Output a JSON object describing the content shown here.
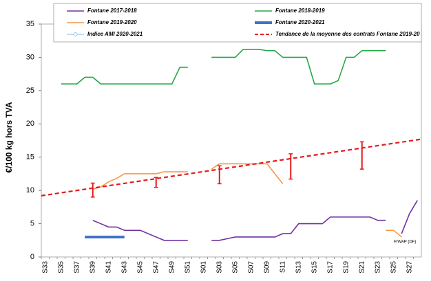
{
  "chart_data": {
    "type": "line",
    "y_label": "€/100 kg hors TVA",
    "annotation": "FIWAP (DF)",
    "ylim": [
      0,
      35
    ],
    "yticks": [
      0,
      5,
      10,
      15,
      20,
      25,
      30,
      35
    ],
    "categories": [
      "S33",
      null,
      "S35",
      null,
      "S37",
      null,
      "S39",
      null,
      "S41",
      null,
      "S43",
      null,
      "S45",
      null,
      "S47",
      null,
      "S49",
      null,
      "S51",
      null,
      "S01",
      null,
      "S03",
      null,
      "S05",
      null,
      "S07",
      null,
      "S09",
      null,
      "S11",
      null,
      "S13",
      null,
      "S15",
      null,
      "S17",
      null,
      "S19",
      null,
      "S21",
      null,
      "S23",
      null,
      "S25",
      null,
      "S27",
      null
    ],
    "series": [
      {
        "name": "Fontane 2017-2018",
        "color": "#7030a0",
        "line_width": 1.6,
        "values": [
          null,
          null,
          null,
          null,
          null,
          null,
          5.5,
          5,
          4.5,
          4.5,
          4,
          4,
          4,
          3.5,
          3,
          2.5,
          2.5,
          2.5,
          2.5,
          null,
          null,
          2.5,
          2.5,
          2.75,
          3,
          3,
          3,
          3,
          3,
          3,
          3.5,
          3.5,
          5,
          5,
          5,
          5,
          6,
          6,
          6,
          6,
          6,
          6,
          5.5,
          5.5,
          null,
          3.5,
          6.5,
          8.5
        ]
      },
      {
        "name": "Fontane 2018-2019",
        "color": "#22a846",
        "line_width": 1.6,
        "values": [
          null,
          null,
          26,
          26,
          26,
          27,
          27,
          26,
          26,
          26,
          26,
          26,
          26,
          26,
          26,
          26,
          26,
          28.5,
          28.5,
          null,
          null,
          30,
          30,
          30,
          30,
          31.2,
          31.2,
          31.2,
          31,
          31,
          30,
          30,
          30,
          30,
          26,
          26,
          26,
          26.5,
          30,
          30,
          31,
          31,
          31,
          31,
          null,
          null,
          null,
          null
        ]
      },
      {
        "name": "Fontane 2019-2020",
        "color": "#f79646",
        "line_width": 1.6,
        "values": [
          null,
          null,
          null,
          null,
          null,
          null,
          10.2,
          10.5,
          11.3,
          11.8,
          12.5,
          12.5,
          12.5,
          12.5,
          12.5,
          12.8,
          12.8,
          12.8,
          12.8,
          null,
          null,
          13.2,
          14,
          14,
          14,
          14,
          14,
          14,
          14,
          12.5,
          11,
          null,
          null,
          null,
          null,
          null,
          null,
          null,
          null,
          null,
          null,
          null,
          null,
          4,
          4,
          3,
          null,
          null
        ]
      },
      {
        "name": "Fontane 2020-2021",
        "color": "#4472c4",
        "line_width": 4,
        "values": [
          null,
          null,
          null,
          null,
          null,
          3,
          3,
          3,
          3,
          3,
          3,
          null,
          null,
          null,
          null,
          null,
          null,
          null,
          null,
          null,
          null,
          null,
          null,
          null,
          null,
          null,
          null,
          null,
          null,
          null,
          null,
          null,
          null,
          null,
          null,
          null,
          null,
          null,
          null,
          null,
          null,
          null,
          null,
          null,
          null,
          null,
          null,
          null
        ]
      },
      {
        "name": "Indice AMI 2020-2021",
        "color": "#9dc3e6",
        "line_width": 1.2,
        "values": [
          null,
          null,
          null,
          null,
          null,
          null,
          null,
          null,
          null,
          null,
          null,
          null,
          null,
          null,
          null,
          null,
          null,
          null,
          null,
          null,
          null,
          null,
          null,
          null,
          null,
          null,
          null,
          null,
          null,
          null,
          null,
          null,
          null,
          null,
          null,
          null,
          null,
          null,
          null,
          null,
          null,
          null,
          null,
          null,
          null,
          null,
          null,
          null
        ]
      }
    ],
    "trend": {
      "name": "Tendance de la moyenne des contrats Fontane 2019-20",
      "color": "#e41a1c",
      "values": [
        9.2,
        17.7
      ]
    },
    "error_bars": {
      "color": "#e41a1c",
      "points": [
        {
          "category": "S39",
          "value": 10.05,
          "error": 1.05
        },
        {
          "category": "S47",
          "value": 11.2,
          "error": 0.75
        },
        {
          "category": "S03",
          "value": 12.35,
          "error": 1.35
        },
        {
          "category": "S12",
          "value": 13.6,
          "error": 1.9
        },
        {
          "category": "S21",
          "value": 15.25,
          "error": 2.05
        }
      ]
    }
  }
}
